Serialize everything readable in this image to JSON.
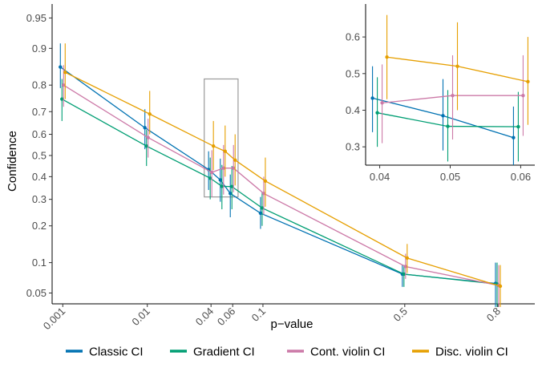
{
  "chart_data": {
    "type": "line",
    "xlabel": "p−value",
    "ylabel": "Confidence",
    "x_scale": "probit",
    "y_scale": "probit",
    "x_ticks": [
      0.001,
      0.01,
      0.04,
      0.06,
      0.1,
      0.5,
      0.8
    ],
    "x_tick_labels": [
      "0.001",
      "0.01",
      "0.04",
      "0.06",
      "0.1",
      "0.5",
      "0.8"
    ],
    "y_ticks": [
      0.05,
      0.1,
      0.2,
      0.3,
      0.4,
      0.5,
      0.6,
      0.7,
      0.8,
      0.9,
      0.95
    ],
    "y_tick_labels": [
      "0.05",
      "0.1",
      "0.2",
      "0.3",
      "0.4",
      "0.5",
      "0.6",
      "0.7",
      "0.8",
      "0.9",
      "0.95"
    ],
    "grid": false,
    "legend_position": "bottom",
    "series": [
      {
        "name": "Classic CI",
        "color": "#0072B2",
        "x": [
          0.001,
          0.01,
          0.04,
          0.05,
          0.06,
          0.1,
          0.5,
          0.8
        ],
        "y": [
          0.855,
          0.63,
          0.433,
          0.385,
          0.325,
          0.245,
          0.078,
          0.063
        ],
        "lo": [
          0.79,
          0.53,
          0.34,
          0.29,
          0.23,
          0.19,
          0.058,
          0.035
        ],
        "hi": [
          0.91,
          0.71,
          0.52,
          0.485,
          0.41,
          0.31,
          0.095,
          0.1
        ]
      },
      {
        "name": "Gradient CI",
        "color": "#009E73",
        "x": [
          0.001,
          0.01,
          0.04,
          0.05,
          0.06,
          0.1,
          0.5,
          0.8
        ],
        "y": [
          0.75,
          0.545,
          0.393,
          0.356,
          0.355,
          0.265,
          0.078,
          0.062
        ],
        "lo": [
          0.66,
          0.45,
          0.3,
          0.26,
          0.26,
          0.2,
          0.058,
          0.035
        ],
        "hi": [
          0.82,
          0.62,
          0.49,
          0.455,
          0.45,
          0.33,
          0.095,
          0.1
        ]
      },
      {
        "name": "Cont. violin CI",
        "color": "#CC79A7",
        "x": [
          0.001,
          0.01,
          0.04,
          0.05,
          0.06,
          0.1,
          0.5,
          0.8
        ],
        "y": [
          0.8,
          0.585,
          0.42,
          0.44,
          0.44,
          0.325,
          0.092,
          0.06
        ],
        "lo": [
          0.72,
          0.49,
          0.31,
          0.32,
          0.33,
          0.24,
          0.07,
          0.035
        ],
        "hi": [
          0.86,
          0.67,
          0.525,
          0.55,
          0.55,
          0.4,
          0.12,
          0.095
        ]
      },
      {
        "name": "Disc. violin CI",
        "color": "#E69F00",
        "x": [
          0.001,
          0.01,
          0.04,
          0.05,
          0.06,
          0.1,
          0.5,
          0.8
        ],
        "y": [
          0.84,
          0.69,
          0.545,
          0.52,
          0.478,
          0.38,
          0.11,
          0.059
        ],
        "lo": [
          0.75,
          0.6,
          0.43,
          0.4,
          0.36,
          0.27,
          0.08,
          0.035
        ],
        "hi": [
          0.91,
          0.78,
          0.66,
          0.64,
          0.6,
          0.49,
          0.145,
          0.095
        ]
      }
    ],
    "highlight_box": {
      "x_range": [
        0.035,
        0.066
      ],
      "y_range": [
        0.31,
        0.82
      ]
    },
    "inset": {
      "x_range": [
        0.038,
        0.062
      ],
      "y_range": [
        0.25,
        0.69
      ],
      "x_ticks": [
        0.04,
        0.05,
        0.06
      ],
      "x_tick_labels": [
        "0.04",
        "0.05",
        "0.06"
      ],
      "y_ticks": [
        0.3,
        0.4,
        0.5,
        0.6
      ],
      "y_tick_labels": [
        "0.3",
        "0.4",
        "0.5",
        "0.6"
      ]
    }
  }
}
